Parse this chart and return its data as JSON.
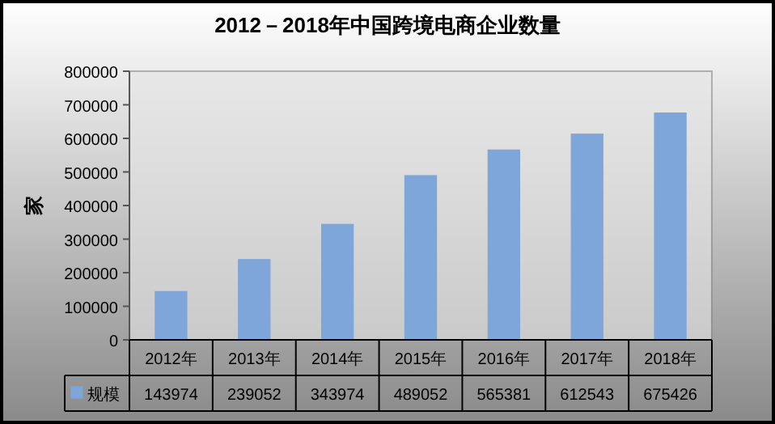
{
  "chart_data": {
    "type": "bar",
    "title": "2012－2018年中国跨境电商企业数量",
    "ylabel": "家",
    "categories": [
      "2012年",
      "2013年",
      "2014年",
      "2015年",
      "2016年",
      "2017年",
      "2018年"
    ],
    "series": [
      {
        "name": "规模",
        "color": "#7ea6d8",
        "values": [
          143974,
          239052,
          343974,
          489052,
          565381,
          612543,
          675426
        ]
      }
    ],
    "ylim": [
      0,
      800000
    ],
    "yticks": [
      0,
      100000,
      200000,
      300000,
      400000,
      500000,
      600000,
      700000,
      800000
    ],
    "data_labels": true,
    "legend": "bottom",
    "grid": false
  }
}
